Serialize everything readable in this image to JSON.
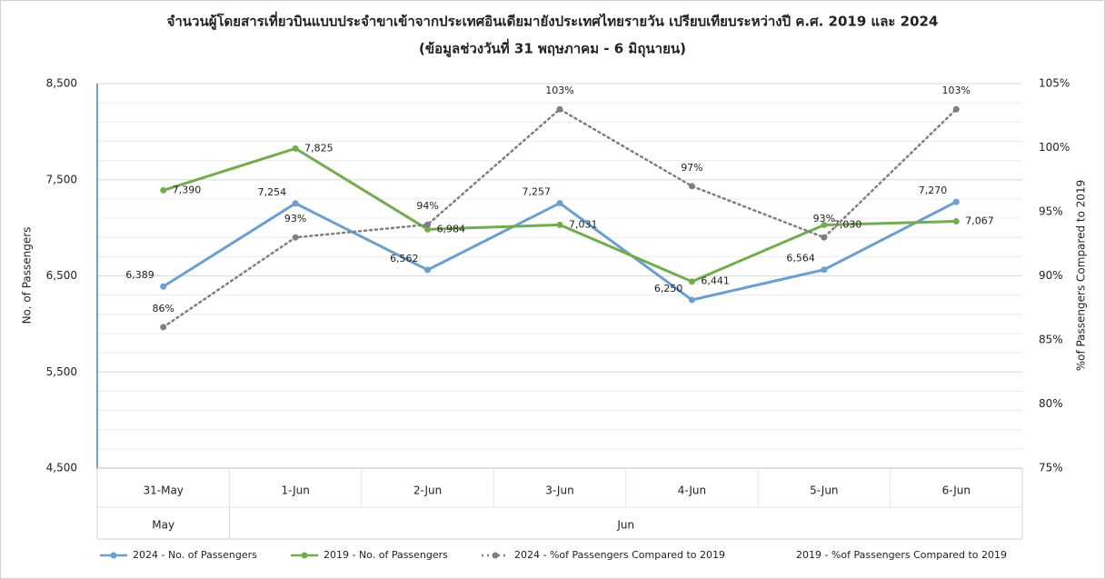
{
  "chart_data": {
    "type": "line",
    "title": "จำนวนผู้โดยสารเที่ยวบินแบบประจำขาเข้าจากประเทศอินเดียมายังประเทศไทยรายวัน เปรียบเทียบระหว่างปี ค.ศ. 2019 และ 2024",
    "subtitle": "(ข้อมูลช่วงวันที่ 31 พฤษภาคม - 6 มิถุนายน)",
    "y_label": "No. of Passengers",
    "y2_label": "%of Passengers Compared to 2019",
    "categories": [
      "31-May",
      "1-Jun",
      "2-Jun",
      "3-Jun",
      "4-Jun",
      "5-Jun",
      "6-Jun"
    ],
    "x_groups": [
      {
        "label": "May",
        "count": 1
      },
      {
        "label": "Jun",
        "count": 6
      }
    ],
    "ylim": [
      4500,
      8500
    ],
    "yticks": [
      {
        "value": 4500,
        "label": "4,500"
      },
      {
        "value": 5500,
        "label": "5,500"
      },
      {
        "value": 6500,
        "label": "6,500"
      },
      {
        "value": 7500,
        "label": "7,500"
      },
      {
        "value": 8500,
        "label": "8,500"
      }
    ],
    "y2lim": [
      75,
      105
    ],
    "y2ticks": [
      {
        "value": 75,
        "label": "75%"
      },
      {
        "value": 80,
        "label": "80%"
      },
      {
        "value": 85,
        "label": "85%"
      },
      {
        "value": 90,
        "label": "90%"
      },
      {
        "value": 95,
        "label": "95%"
      },
      {
        "value": 100,
        "label": "100%"
      },
      {
        "value": 105,
        "label": "105%"
      }
    ],
    "grid": true,
    "legend": "bottom",
    "series": [
      {
        "name": "2024 - No. of Passengers",
        "color": "#6a9fd0",
        "values": [
          6389,
          7254,
          6562,
          7257,
          6250,
          6564,
          7270
        ],
        "value_labels": [
          "6,389",
          "7,254",
          "6,562",
          "7,257",
          "6,250",
          "6,564",
          "7,270"
        ]
      },
      {
        "name": "2019 - No. of Passengers",
        "color": "#72ac4d",
        "values": [
          7390,
          7825,
          6984,
          7031,
          6441,
          7030,
          7067
        ],
        "value_labels": [
          "7,390",
          "7,825",
          "6,984",
          "7,031",
          "6,441",
          "7,030",
          "7,067"
        ]
      },
      {
        "name": "2024 - %of Passengers Compared to 2019",
        "color": "#7f7f7f",
        "dashed": true,
        "axis": "y2",
        "values": [
          86,
          93,
          94,
          103,
          97,
          93,
          103
        ],
        "value_labels": [
          "86%",
          "93%",
          "94%",
          "103%",
          "97%",
          "93%",
          "103%"
        ]
      },
      {
        "name": "2019 - %of Passengers Compared to 2019",
        "axis": "y2",
        "values": [
          null,
          null,
          null,
          null,
          null,
          null,
          null
        ]
      }
    ]
  }
}
